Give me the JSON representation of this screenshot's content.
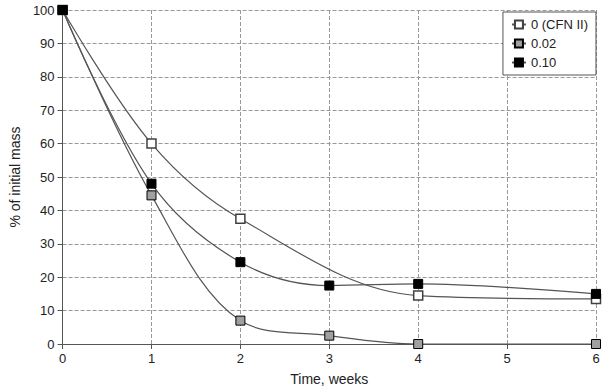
{
  "chart_data": {
    "type": "line",
    "x_label": "Time, weeks",
    "y_label": "% of initial mass",
    "series": [
      {
        "name": "0 (CFN II)",
        "color": "#404040",
        "marker": "square-open",
        "x": [
          0,
          1,
          2,
          4,
          6
        ],
        "values": [
          100,
          60,
          37.5,
          14.5,
          13.5
        ]
      },
      {
        "name": "0.02",
        "color": "#a0a0a0",
        "marker": "square",
        "x": [
          0,
          1,
          2,
          3,
          4,
          6
        ],
        "values": [
          100,
          44.5,
          7,
          2.5,
          0,
          0
        ]
      },
      {
        "name": "0.10",
        "color": "#000000",
        "marker": "square",
        "x": [
          0,
          1,
          2,
          3,
          4,
          6
        ],
        "values": [
          100,
          48,
          24.5,
          17.5,
          18,
          15
        ]
      }
    ],
    "xlim": [
      0,
      6
    ],
    "xticks": [
      0,
      1,
      2,
      3,
      4,
      5,
      6
    ],
    "ylim": [
      0,
      100
    ],
    "yticks": [
      0,
      10,
      20,
      30,
      40,
      50,
      60,
      70,
      80,
      90,
      100
    ],
    "grid": true,
    "legend": "upper right"
  }
}
